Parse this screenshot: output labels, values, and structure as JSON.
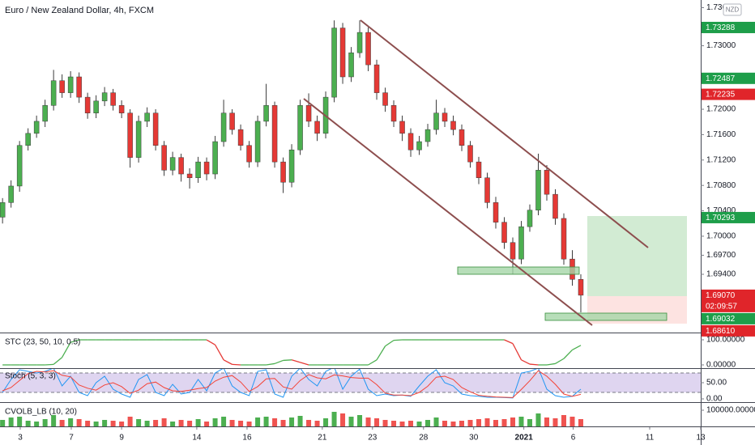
{
  "chart_data": [
    {
      "type": "candlestick",
      "title": "Euro / New Zealand Dollar, 4h, FXCM",
      "currency": "NZD",
      "up_color": "#4caf50",
      "down_color": "#e53935",
      "x": [
        0,
        1,
        2,
        3,
        4,
        5,
        6,
        7,
        8,
        9,
        10,
        11,
        12,
        13,
        14,
        15,
        16,
        17,
        18,
        19,
        20,
        21,
        22,
        23,
        24,
        25,
        26,
        27,
        28,
        29,
        30,
        31,
        32,
        33,
        34,
        35,
        36,
        37,
        38,
        39,
        40,
        41,
        42,
        43,
        44,
        45,
        46,
        47,
        48,
        49,
        50,
        51,
        52,
        53,
        54,
        55,
        56,
        57,
        58,
        59,
        60,
        61,
        62,
        63,
        64,
        65,
        66,
        67,
        68
      ],
      "open": [
        1.703,
        1.7053,
        1.7079,
        1.7143,
        1.7162,
        1.7181,
        1.7206,
        1.7245,
        1.7226,
        1.7251,
        1.7219,
        1.7194,
        1.7213,
        1.7226,
        1.7206,
        1.7194,
        1.7124,
        1.7181,
        1.7194,
        1.7143,
        1.7104,
        1.7124,
        1.7098,
        1.7092,
        1.7117,
        1.7098,
        1.7149,
        1.7194,
        1.7168,
        1.7143,
        1.7117,
        1.7181,
        1.7206,
        1.7117,
        1.7085,
        1.7136,
        1.7206,
        1.7181,
        1.7162,
        1.7219,
        1.7328,
        1.7251,
        1.7289,
        1.7321,
        1.727,
        1.7226,
        1.7206,
        1.7181,
        1.7162,
        1.7136,
        1.7149,
        1.7168,
        1.7194,
        1.7181,
        1.7168,
        1.7143,
        1.7117,
        1.7092,
        1.7053,
        1.7022,
        1.699,
        1.6964,
        1.7015,
        1.7041,
        1.7104,
        1.7066,
        1.7028,
        1.6964,
        1.6932
      ],
      "high": [
        1.706,
        1.7088,
        1.715,
        1.717,
        1.719,
        1.7215,
        1.7262,
        1.7255,
        1.726,
        1.7258,
        1.7226,
        1.7222,
        1.7235,
        1.7232,
        1.7214,
        1.72,
        1.719,
        1.7203,
        1.72,
        1.715,
        1.7133,
        1.713,
        1.7107,
        1.7125,
        1.7124,
        1.7158,
        1.7215,
        1.72,
        1.7176,
        1.715,
        1.719,
        1.724,
        1.7212,
        1.7124,
        1.7145,
        1.7215,
        1.7225,
        1.719,
        1.7228,
        1.734,
        1.7336,
        1.7298,
        1.734,
        1.7329,
        1.7278,
        1.7234,
        1.7214,
        1.719,
        1.717,
        1.7158,
        1.7177,
        1.7215,
        1.7202,
        1.719,
        1.7176,
        1.715,
        1.7125,
        1.71,
        1.7062,
        1.703,
        1.6998,
        1.7024,
        1.705,
        1.713,
        1.7112,
        1.7074,
        1.7036,
        1.6978,
        1.694
      ],
      "low": [
        1.702,
        1.7045,
        1.707,
        1.7135,
        1.7155,
        1.7172,
        1.7198,
        1.7218,
        1.7218,
        1.721,
        1.7185,
        1.7186,
        1.7205,
        1.7198,
        1.7186,
        1.7108,
        1.7116,
        1.7172,
        1.7135,
        1.7095,
        1.7096,
        1.7086,
        1.7075,
        1.7084,
        1.7088,
        1.709,
        1.7141,
        1.716,
        1.7135,
        1.7108,
        1.7109,
        1.7173,
        1.7108,
        1.7068,
        1.7077,
        1.7128,
        1.7172,
        1.715,
        1.7154,
        1.7211,
        1.724,
        1.7243,
        1.7281,
        1.726,
        1.7215,
        1.7196,
        1.7172,
        1.715,
        1.7125,
        1.7128,
        1.7141,
        1.716,
        1.7172,
        1.7159,
        1.7134,
        1.7108,
        1.7082,
        1.7044,
        1.7012,
        1.698,
        1.694,
        1.6956,
        1.7007,
        1.7033,
        1.7056,
        1.7018,
        1.6955,
        1.6922,
        1.688
      ],
      "close": [
        1.7053,
        1.7079,
        1.7143,
        1.7162,
        1.7181,
        1.7206,
        1.7245,
        1.7226,
        1.7251,
        1.7219,
        1.7194,
        1.7213,
        1.7226,
        1.7206,
        1.7194,
        1.7124,
        1.7181,
        1.7194,
        1.7143,
        1.7104,
        1.7124,
        1.7098,
        1.7092,
        1.7117,
        1.7098,
        1.7149,
        1.7194,
        1.7168,
        1.7143,
        1.7117,
        1.7181,
        1.7206,
        1.7117,
        1.7085,
        1.7136,
        1.7206,
        1.7181,
        1.7162,
        1.7219,
        1.7328,
        1.7251,
        1.7289,
        1.7321,
        1.727,
        1.7226,
        1.7206,
        1.7181,
        1.7162,
        1.7136,
        1.7149,
        1.7168,
        1.7194,
        1.7181,
        1.7168,
        1.7143,
        1.7117,
        1.7092,
        1.7053,
        1.7022,
        1.699,
        1.6964,
        1.7015,
        1.7041,
        1.7104,
        1.7066,
        1.7028,
        1.6964,
        1.6932,
        1.6907
      ],
      "xlim": [
        -0.3,
        82.1
      ],
      "ylim": [
        1.68495,
        1.73721
      ],
      "xticks": [
        {
          "value": 2.08,
          "label": "3"
        },
        {
          "value": 8.08,
          "label": "7"
        },
        {
          "value": 14.0,
          "label": "9"
        },
        {
          "value": 22.84,
          "label": "14"
        },
        {
          "value": 28.75,
          "label": "16"
        },
        {
          "value": 37.6,
          "label": "21"
        },
        {
          "value": 43.5,
          "label": "23"
        },
        {
          "value": 49.5,
          "label": "28"
        },
        {
          "value": 55.4,
          "label": "30"
        },
        {
          "value": 61.3,
          "label": "2021"
        },
        {
          "value": 67.1,
          "label": "6"
        },
        {
          "value": 76.1,
          "label": "11"
        },
        {
          "value": 82.1,
          "label": "13"
        }
      ],
      "yticks": [
        {
          "value": 1.736,
          "label": "1.73600"
        },
        {
          "value": 1.73,
          "label": "1.73000"
        },
        {
          "value": 1.72,
          "label": "1.72000"
        },
        {
          "value": 1.716,
          "label": "1.71600"
        },
        {
          "value": 1.712,
          "label": "1.71200"
        },
        {
          "value": 1.708,
          "label": "1.70800"
        },
        {
          "value": 1.704,
          "label": "1.70400"
        },
        {
          "value": 1.7,
          "label": "1.70000"
        },
        {
          "value": 1.697,
          "label": "1.69700"
        },
        {
          "value": 1.694,
          "label": "1.69400"
        }
      ],
      "price_markers": [
        {
          "value": 1.73288,
          "label": "1.73288",
          "color": "#1e9e4a"
        },
        {
          "value": 1.72487,
          "label": "1.72487",
          "color": "#1e9e4a"
        },
        {
          "value": 1.72235,
          "label": "1.72235",
          "color": "#e0252a"
        },
        {
          "value": 1.70293,
          "label": "1.70293",
          "color": "#1e9e4a"
        },
        {
          "value": 1.6907,
          "label": "1.69070",
          "color": "#e0252a",
          "countdown": "02:09:57"
        },
        {
          "value": 1.69032,
          "label": "1.69032",
          "color": "#1e9e4a"
        },
        {
          "value": 1.6861,
          "label": "1.68610",
          "color": "#e0252a"
        }
      ]
    },
    {
      "type": "line",
      "title": "STC (23, 50, 10, 0.5)",
      "up_color": "#4caf50",
      "down_color": "#e53935",
      "values": [
        0,
        0,
        0,
        0,
        0,
        0,
        2,
        30,
        90,
        100,
        100,
        100,
        100,
        100,
        100,
        100,
        100,
        100,
        100,
        100,
        100,
        100,
        100,
        100,
        100,
        80,
        20,
        2,
        0,
        0,
        0,
        0,
        5,
        18,
        20,
        10,
        0,
        0,
        0,
        0,
        0,
        0,
        0,
        0,
        20,
        75,
        98,
        100,
        100,
        100,
        100,
        100,
        100,
        100,
        100,
        100,
        100,
        100,
        100,
        100,
        85,
        20,
        3,
        0,
        0,
        5,
        25,
        60,
        78
      ],
      "ylim": [
        -12.9,
        122.6
      ],
      "yticks": [
        {
          "value": 100,
          "label": "100.00000"
        },
        {
          "value": 0,
          "label": "0.00000"
        }
      ]
    },
    {
      "type": "stochastic",
      "title": "Stoch (5, 3, 3)",
      "bands": [
        20,
        80
      ],
      "band_color": "#9575cd",
      "series": [
        {
          "color": "#2196f3",
          "values": [
            20,
            60,
            90,
            85,
            80,
            85,
            95,
            40,
            70,
            20,
            10,
            50,
            70,
            30,
            15,
            5,
            60,
            75,
            20,
            10,
            45,
            15,
            20,
            60,
            25,
            80,
            95,
            40,
            20,
            10,
            85,
            90,
            15,
            5,
            70,
            95,
            60,
            40,
            85,
            98,
            30,
            70,
            92,
            30,
            10,
            15,
            10,
            12,
            8,
            40,
            70,
            90,
            50,
            40,
            15,
            10,
            8,
            5,
            5,
            4,
            3,
            80,
            85,
            95,
            30,
            10,
            5,
            8,
            30
          ]
        },
        {
          "color": "#f44336",
          "values": [
            25,
            35,
            57,
            78,
            85,
            83,
            87,
            73,
            68,
            43,
            33,
            27,
            43,
            50,
            38,
            17,
            27,
            47,
            52,
            35,
            25,
            23,
            27,
            32,
            35,
            55,
            67,
            72,
            52,
            23,
            38,
            62,
            63,
            37,
            30,
            57,
            75,
            65,
            62,
            74,
            71,
            66,
            64,
            64,
            44,
            18,
            12,
            12,
            10,
            20,
            39,
            67,
            70,
            60,
            35,
            22,
            11,
            8,
            6,
            5,
            4,
            29,
            56,
            87,
            70,
            45,
            15,
            8,
            14
          ]
        }
      ],
      "ylim": [
        -10,
        95
      ],
      "yticks": [
        {
          "value": 50,
          "label": "50.00"
        },
        {
          "value": 0,
          "label": "0.00"
        }
      ]
    },
    {
      "type": "volume",
      "title": "CVOLB_LB (10, 20)",
      "up_color": "#4caf50",
      "down_color": "#ef5350",
      "values": [
        40000,
        55000,
        60000,
        35000,
        30000,
        45000,
        70000,
        40000,
        50000,
        45000,
        35000,
        30000,
        40000,
        35000,
        30000,
        60000,
        45000,
        35000,
        40000,
        50000,
        30000,
        40000,
        35000,
        45000,
        30000,
        50000,
        60000,
        40000,
        35000,
        30000,
        55000,
        60000,
        50000,
        40000,
        55000,
        65000,
        40000,
        35000,
        50000,
        90000,
        80000,
        60000,
        70000,
        55000,
        50000,
        40000,
        35000,
        30000,
        35000,
        30000,
        40000,
        55000,
        35000,
        30000,
        35000,
        40000,
        45000,
        50000,
        40000,
        45000,
        55000,
        60000,
        45000,
        80000,
        55000,
        50000,
        70000,
        60000,
        45000
      ],
      "ylim": [
        0,
        140000
      ],
      "yticks": [
        {
          "value": 100000,
          "label": "100000.00000"
        }
      ]
    }
  ]
}
